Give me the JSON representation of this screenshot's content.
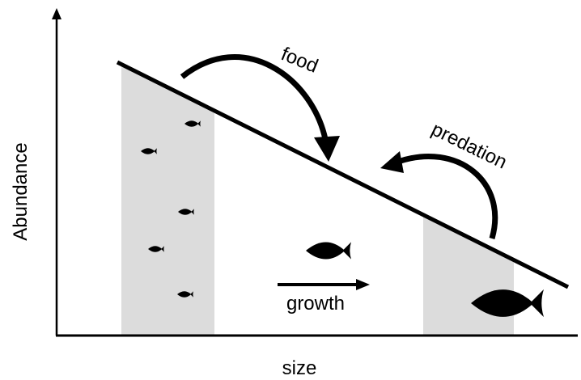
{
  "y_axis_label": "Abundance",
  "x_axis_label": "size",
  "arrows": {
    "food": "food",
    "predation": "predation",
    "growth": "growth"
  }
}
